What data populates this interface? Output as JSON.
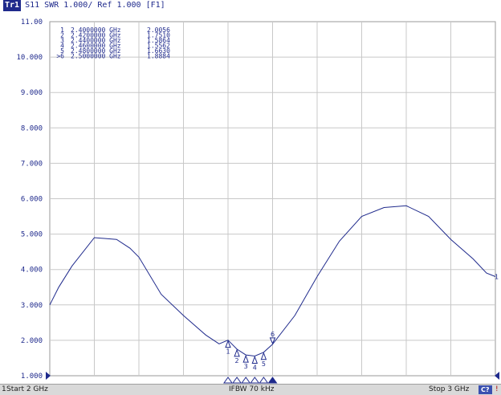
{
  "header": {
    "trace": "Tr1",
    "info": "S11  SWR 1.000/ Ref 1.000 [F1]"
  },
  "colors": {
    "trace": "#1f2a8c",
    "grid": "#c8c8c8",
    "background": "#ffffff"
  },
  "chart_data": {
    "type": "line",
    "xlim": [
      2.0,
      3.0
    ],
    "ylim": [
      1.0,
      11.0
    ],
    "y_ticks": [
      "1.000",
      "2.000",
      "3.000",
      "4.000",
      "5.000",
      "6.000",
      "7.000",
      "8.000",
      "9.000",
      "10.000",
      "11.00"
    ],
    "grid": true,
    "series": [
      {
        "x": [
          2.0,
          2.02,
          2.05,
          2.1,
          2.15,
          2.18,
          2.2,
          2.25,
          2.3,
          2.35,
          2.38,
          2.4,
          2.42,
          2.44,
          2.46,
          2.48,
          2.5,
          2.55,
          2.6,
          2.65,
          2.7,
          2.75,
          2.8,
          2.85,
          2.9,
          2.95,
          2.98,
          3.0
        ],
        "values": [
          3.0,
          3.5,
          4.1,
          4.9,
          4.85,
          4.6,
          4.35,
          3.3,
          2.7,
          2.15,
          1.9,
          2.0056,
          1.751,
          1.5864,
          1.5562,
          1.663,
          1.8884,
          2.7,
          3.8,
          4.8,
          5.5,
          5.75,
          5.8,
          5.5,
          4.85,
          4.3,
          3.9,
          3.8
        ]
      }
    ],
    "markers": [
      {
        "id": "1",
        "label": "1",
        "freq": "2.4000000 GHz",
        "x": 2.4,
        "y": 2.0056,
        "value": "2.0056"
      },
      {
        "id": "2",
        "label": "2",
        "freq": "2.4200000 GHz",
        "x": 2.42,
        "y": 1.751,
        "value": "1.7510"
      },
      {
        "id": "3",
        "label": "3",
        "freq": "2.4400000 GHz",
        "x": 2.44,
        "y": 1.5864,
        "value": "1.5864"
      },
      {
        "id": "4",
        "label": "4",
        "freq": "2.4600000 GHz",
        "x": 2.46,
        "y": 1.5562,
        "value": "1.5562"
      },
      {
        "id": "5",
        "label": "5",
        "freq": "2.4800000 GHz",
        "x": 2.48,
        "y": 1.663,
        "value": "1.6630"
      },
      {
        "id": ">6",
        "label": "6",
        "freq": "2.5000000 GHz",
        "x": 2.5,
        "y": 1.8884,
        "value": "1.8884"
      }
    ],
    "end_label": "1"
  },
  "status": {
    "channel": "1",
    "start": "Start 2 GHz",
    "ifbw": "IFBW 70 kHz",
    "stop": "Stop 3 GHz",
    "badge": "C?",
    "warn": "!"
  }
}
